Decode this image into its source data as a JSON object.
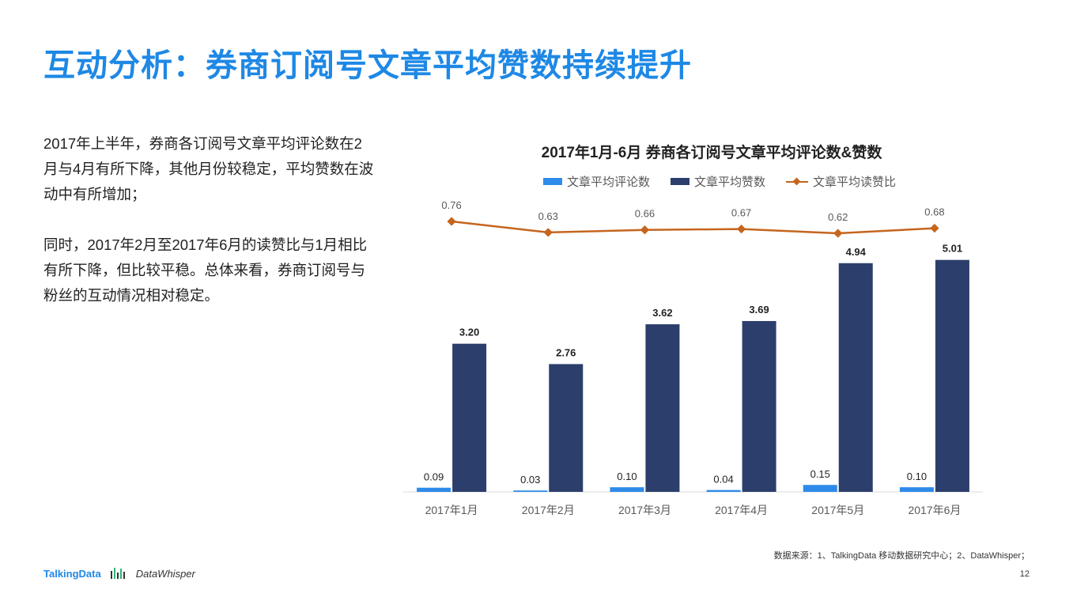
{
  "page": {
    "title": "互动分析：券商订阅号文章平均赞数持续提升",
    "paragraphs": [
      "2017年上半年，券商各订阅号文章平均评论数在2月与4月有所下降，其他月份较稳定，平均赞数在波动中有所增加；",
      "同时，2017年2月至2017年6月的读赞比与1月相比有所下降，但比较平稳。总体来看，券商订阅号与粉丝的互动情况相对稳定。"
    ],
    "source": "数据来源：1、TalkingData 移动数据研究中心；2、DataWhisper；",
    "page_number": "12",
    "brand_talkingdata": "TalkingData",
    "brand_datawhisper": "DataWhisper"
  },
  "colors": {
    "title": "#1e88e5",
    "comments": "#2e8bea",
    "likes": "#2c3e6b",
    "ratio": "#c5651e"
  },
  "chart_data": {
    "type": "bar",
    "title": "2017年1月-6月 券商各订阅号文章平均评论数&赞数",
    "categories": [
      "2017年1月",
      "2017年2月",
      "2017年3月",
      "2017年4月",
      "2017年5月",
      "2017年6月"
    ],
    "series": [
      {
        "name": "文章平均评论数",
        "type": "bar",
        "values": [
          0.09,
          0.03,
          0.1,
          0.04,
          0.15,
          0.1
        ],
        "labels": [
          "0.09",
          "0.03",
          "0.10",
          "0.04",
          "0.15",
          "0.10"
        ]
      },
      {
        "name": "文章平均赞数",
        "type": "bar",
        "values": [
          3.2,
          2.76,
          3.62,
          3.69,
          4.94,
          5.01
        ],
        "labels": [
          "3.20",
          "2.76",
          "3.62",
          "3.69",
          "4.94",
          "5.01"
        ]
      },
      {
        "name": "文章平均读赞比",
        "type": "line",
        "values": [
          0.76,
          0.63,
          0.66,
          0.67,
          0.62,
          0.68
        ],
        "labels": [
          "0.76",
          "0.63",
          "0.66",
          "0.67",
          "0.62",
          "0.68"
        ]
      }
    ],
    "legend": "top"
  }
}
